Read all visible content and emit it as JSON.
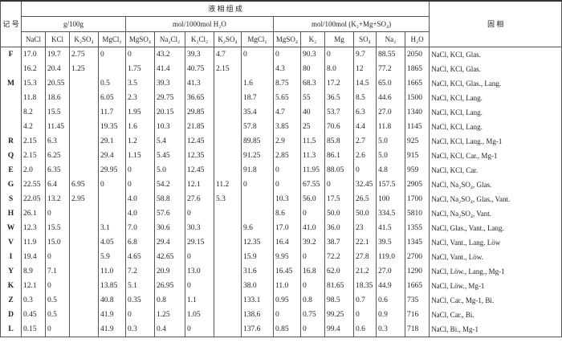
{
  "header": {
    "mark": "记 号",
    "liquid": "液 相 组 成",
    "solid": "固 相",
    "units": [
      "g/100g",
      "mol/1000mol H₂O",
      "mol/100mol (K₂+Mg+SO₄)"
    ],
    "columns": [
      "NaCl",
      "KCl",
      "K₂SO₄",
      "MgCl₂",
      "MgSO₄",
      "Na₂Cl₂",
      "K₂Cl₂",
      "K₂SO₄",
      "MgCl₂",
      "MgSO₄",
      "K₂",
      "Mg",
      "SO₄",
      "Na₂",
      "H₂O"
    ]
  },
  "rows": [
    {
      "mark": "F",
      "values": [
        "17.0",
        "19.7",
        "2.75",
        "0",
        "0",
        "43.2",
        "39.3",
        "4.7",
        "0",
        "0",
        "90.3",
        "0",
        "9.7",
        "88.55",
        "2050"
      ],
      "solid": "NaCl, KCl, Glas."
    },
    {
      "mark": null,
      "values": [
        "16.2",
        "20.4",
        "1.25",
        null,
        "1.75",
        "41.4",
        "40.75",
        "2.15",
        null,
        "4.3",
        "80",
        "8.0",
        "12",
        "77.2",
        "1865"
      ],
      "solid": "NaCl, KCl, Glas."
    },
    {
      "mark": "M",
      "values": [
        "15.3",
        "20.55",
        null,
        "0.5",
        "3.5",
        "39.3",
        "41.3",
        null,
        "1.6",
        "8.75",
        "68.3",
        "17.2",
        "14.5",
        "65.0",
        "1665"
      ],
      "solid": "NaCl, KCl, Glas., Lang."
    },
    {
      "mark": null,
      "values": [
        "11.8",
        "18.6",
        null,
        "6.05",
        "2.3",
        "29.75",
        "36.65",
        null,
        "18.7",
        "5.65",
        "55",
        "36.5",
        "8.5",
        "44.6",
        "1500"
      ],
      "solid": "NaCl, KCl, Lang."
    },
    {
      "mark": null,
      "values": [
        "8.2",
        "15.5",
        null,
        "11.7",
        "1.95",
        "20.15",
        "29.85",
        null,
        "35.4",
        "4.7",
        "40",
        "53.7",
        "6.3",
        "27.0",
        "1340"
      ],
      "solid": "NaCl, KCl, Lang."
    },
    {
      "mark": null,
      "values": [
        "4.2",
        "11.45",
        null,
        "19.35",
        "1.6",
        "10.3",
        "21.85",
        null,
        "57.8",
        "3.85",
        "25",
        "70.6",
        "4.4",
        "11.8",
        "1145"
      ],
      "solid": "NaCl, KCl, Lang."
    },
    {
      "mark": "R",
      "values": [
        "2.15",
        "6.3",
        null,
        "29.1",
        "1.2",
        "5.4",
        "12.45",
        null,
        "89.85",
        "2.9",
        "11.5",
        "85.8",
        "2.7",
        "5.0",
        "925"
      ],
      "solid": "NaCl, KCl, Lang., Mg-1"
    },
    {
      "mark": "Q",
      "values": [
        "2.15",
        "6.25",
        null,
        "29.4",
        "1.15",
        "5.45",
        "12.35",
        null,
        "91.25",
        "2.85",
        "11.3",
        "86.1",
        "2.6",
        "5.0",
        "915"
      ],
      "solid": "NaCl, KCl, Car., Mg-1"
    },
    {
      "mark": "E",
      "values": [
        "2.0",
        "6.35",
        null,
        "29.95",
        "0",
        "5.0",
        "12.45",
        null,
        "91.8",
        "0",
        "11.95",
        "88.05",
        "0",
        "4.8",
        "959"
      ],
      "solid": "NaCl, KCl, Car."
    },
    {
      "mark": "G",
      "values": [
        "22.55",
        "6.4",
        "6.95",
        "0",
        "0",
        "54.2",
        "12.1",
        "11.2",
        "0",
        "0",
        "67.55",
        "0",
        "32.45",
        "157.5",
        "2905"
      ],
      "solid": "NaCl, Na₂SO₄, Glas."
    },
    {
      "mark": "S",
      "values": [
        "22.05",
        "13.2",
        "2.95",
        null,
        "4.0",
        "58.8",
        "27.6",
        "5.3",
        null,
        "10.3",
        "56.0",
        "17.5",
        "26.5",
        "100",
        "1700"
      ],
      "solid": "NaCl, Na₂SO₄, Glas., Vant."
    },
    {
      "mark": "H",
      "values": [
        "26.1",
        "0",
        null,
        null,
        "4.0",
        "57.6",
        "0",
        null,
        null,
        "8.6",
        "0",
        "50.0",
        "50.0",
        "334.5",
        "5810"
      ],
      "solid": "NaCl, Na₂SO₄, Vant."
    },
    {
      "mark": "W",
      "values": [
        "12.3",
        "15.5",
        null,
        "3.1",
        "7.0",
        "30.6",
        "30.3",
        null,
        "9.6",
        "17.0",
        "41.0",
        "36.0",
        "23",
        "41.5",
        "1355"
      ],
      "solid": "NaCl, Glas., Vant., Lang."
    },
    {
      "mark": "V",
      "values": [
        "11.9",
        "15.0",
        null,
        "4.05",
        "6.8",
        "29.4",
        "29.15",
        null,
        "12.35",
        "16.4",
        "39.2",
        "38.7",
        "22.1",
        "39.5",
        "1345"
      ],
      "solid": "NaCl, Vant., Lang. Löw"
    },
    {
      "mark": "I",
      "values": [
        "19.4",
        "0",
        null,
        "5.9",
        "4.65",
        "42.65",
        "0",
        null,
        "15.9",
        "9.95",
        "0",
        "72.2",
        "27.8",
        "119.0",
        "2700"
      ],
      "solid": "NaCl, Vant., Löw."
    },
    {
      "mark": "Y",
      "values": [
        "8.9",
        "7.1",
        null,
        "11.0",
        "7.2",
        "20.9",
        "13.0",
        null,
        "31.6",
        "16.45",
        "16.8",
        "62.0",
        "21.2",
        "27.0",
        "1290"
      ],
      "solid": "NaCl, Löw., Lang., Mg-1"
    },
    {
      "mark": "K",
      "values": [
        "12.1",
        "0",
        null,
        "13.85",
        "5.1",
        "26.95",
        "0",
        null,
        "38.0",
        "11.0",
        "0",
        "81.65",
        "18.35",
        "44.9",
        "1665"
      ],
      "solid": "NaCl, Löw., Mg-1"
    },
    {
      "mark": "Z",
      "values": [
        "0.3",
        "0.5",
        null,
        "40.8",
        "0.35",
        "0.8",
        "1.1",
        null,
        "133.1",
        "0.95",
        "0.8",
        "98.5",
        "0.7",
        "0.6",
        "735"
      ],
      "solid": "NaCl, Car., Mg-1, Bi."
    },
    {
      "mark": "D",
      "values": [
        "0.45",
        "0.5",
        null,
        "41.9",
        "0",
        "1.25",
        "1.05",
        null,
        "138.6",
        "0",
        "0.75",
        "99.25",
        "0",
        "0.9",
        "716"
      ],
      "solid": "NaCl, Car., Bi."
    },
    {
      "mark": "L",
      "values": [
        "0.15",
        "0",
        null,
        "41.9",
        "0.3",
        "0.4",
        "0",
        null,
        "137.6",
        "0.85",
        "0",
        "99.4",
        "0.6",
        "0.3",
        "718"
      ],
      "solid": "NaCl, Bi., Mg-1"
    }
  ]
}
